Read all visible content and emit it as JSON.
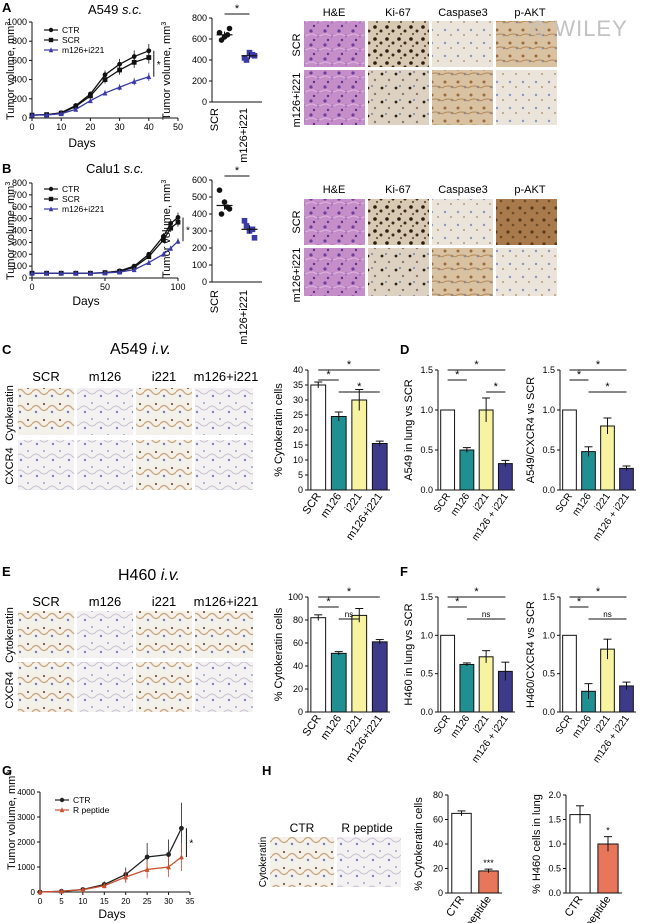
{
  "watermark": "© WILEY",
  "panels": {
    "A": {
      "letter": "A",
      "title_main": "A549",
      "title_em": "s.c.",
      "y_label": "Tumor volume, mm",
      "x_label": "Days",
      "dot_y_label": "Tumor volume, mm",
      "dot_categories": [
        "SCR",
        "m126+i221"
      ],
      "star": "*",
      "ihc_cols": [
        "H&E",
        "Ki-67",
        "Caspase3",
        "p-AKT"
      ],
      "ihc_rows": [
        "SCR",
        "m126+i221"
      ]
    },
    "B": {
      "letter": "B",
      "title_main": "Calu1",
      "title_em": "s.c.",
      "y_label": "Tumor volume, mm",
      "x_label": "Days",
      "dot_y_label": "Tumor volume, mm",
      "dot_categories": [
        "SCR",
        "m126+i221"
      ],
      "star": "*",
      "ihc_cols": [
        "H&E",
        "Ki-67",
        "Caspase3",
        "p-AKT"
      ],
      "ihc_rows": [
        "SCR",
        "m126+i221"
      ]
    },
    "C": {
      "letter": "C",
      "title_main": "A549",
      "title_em": "i.v.",
      "ihc_cols": [
        "SCR",
        "m126",
        "i221",
        "m126+i221"
      ],
      "ihc_rows": [
        "Cytokeratin",
        "CXCR4"
      ]
    },
    "D": {
      "letter": "D"
    },
    "E": {
      "letter": "E",
      "title_main": "H460",
      "title_em": "i.v.",
      "ihc_cols": [
        "SCR",
        "m126",
        "i221",
        "m126+i221"
      ],
      "ihc_rows": [
        "Cytokeratin",
        "CXCR4"
      ]
    },
    "F": {
      "letter": "F"
    },
    "G": {
      "letter": "G",
      "y_label": "Tumor volume, mm",
      "x_label": "Days"
    },
    "H": {
      "letter": "H",
      "ihc_cols": [
        "CTR",
        "R peptide"
      ],
      "ihc_row": "Cytokeratin"
    }
  },
  "chart_data": [
    {
      "id": "A-growth",
      "type": "line",
      "x": [
        0,
        5,
        10,
        15,
        20,
        25,
        30,
        35,
        40
      ],
      "xlim": [
        0,
        50
      ],
      "xticks": [
        0,
        10,
        20,
        30,
        40,
        50
      ],
      "ylim": [
        0,
        1000
      ],
      "yticks": [
        0,
        200,
        400,
        600,
        800,
        1000
      ],
      "series": [
        {
          "name": "CTR",
          "color": "#111111",
          "marker": "circle",
          "values": [
            30,
            35,
            55,
            130,
            250,
            450,
            560,
            640,
            700
          ]
        },
        {
          "name": "SCR",
          "color": "#111111",
          "marker": "square",
          "values": [
            30,
            35,
            50,
            120,
            230,
            400,
            500,
            580,
            630
          ]
        },
        {
          "name": "m126+i221",
          "color": "#3a3aa8",
          "marker": "triangle",
          "values": [
            30,
            32,
            45,
            90,
            180,
            260,
            320,
            380,
            430
          ]
        }
      ],
      "star": "*"
    },
    {
      "id": "A-dot",
      "type": "scatter",
      "categories": [
        "SCR",
        "m126+i221"
      ],
      "ylim": [
        0,
        800
      ],
      "yticks": [
        0,
        200,
        400,
        600,
        800
      ],
      "groups": [
        {
          "marker": "circle",
          "color": "#111111",
          "values": [
            660,
            620,
            700,
            590,
            640
          ],
          "mean": 640
        },
        {
          "marker": "square",
          "color": "#3a3aa8",
          "values": [
            420,
            470,
            440,
            400,
            450
          ],
          "mean": 440
        }
      ],
      "star": "*"
    },
    {
      "id": "B-growth",
      "type": "line",
      "x": [
        0,
        10,
        20,
        30,
        40,
        50,
        60,
        70,
        80,
        90,
        95,
        100
      ],
      "xlim": [
        0,
        100
      ],
      "xticks": [
        0,
        50,
        100
      ],
      "ylim": [
        0,
        800
      ],
      "yticks": [
        0,
        100,
        200,
        300,
        400,
        500,
        600,
        700,
        800
      ],
      "series": [
        {
          "name": "CTR",
          "color": "#111111",
          "marker": "circle",
          "values": [
            40,
            40,
            40,
            40,
            40,
            45,
            60,
            100,
            200,
            350,
            460,
            510
          ]
        },
        {
          "name": "SCR",
          "color": "#111111",
          "marker": "square",
          "values": [
            40,
            40,
            40,
            40,
            40,
            45,
            55,
            90,
            180,
            320,
            420,
            470
          ]
        },
        {
          "name": "m126+i221",
          "color": "#3a3aa8",
          "marker": "triangle",
          "values": [
            40,
            40,
            40,
            40,
            40,
            42,
            50,
            70,
            130,
            200,
            250,
            310
          ]
        }
      ],
      "star": "*"
    },
    {
      "id": "B-dot",
      "type": "scatter",
      "categories": [
        "SCR",
        "m126+i221"
      ],
      "ylim": [
        0,
        600
      ],
      "yticks": [
        0,
        100,
        200,
        300,
        400,
        500,
        600
      ],
      "groups": [
        {
          "marker": "circle",
          "color": "#111111",
          "values": [
            540,
            470,
            430,
            400,
            440
          ],
          "mean": 450
        },
        {
          "marker": "square",
          "color": "#3a3aa8",
          "values": [
            360,
            300,
            260,
            330,
            310
          ],
          "mean": 310
        }
      ],
      "star": "*"
    },
    {
      "id": "C-bar",
      "type": "bar",
      "ylabel": "% Cytokeratin cells",
      "categories": [
        "SCR",
        "m126",
        "i221",
        "m126+i221"
      ],
      "values": [
        35,
        24.5,
        30,
        15.5
      ],
      "errors": [
        1,
        1.5,
        3.5,
        0.8
      ],
      "colors": [
        "#ffffff",
        "#1f8f92",
        "#f7f3a0",
        "#3d3a8a"
      ],
      "ylim": [
        0,
        40
      ],
      "yticks": [
        0,
        5,
        10,
        15,
        20,
        25,
        30,
        35,
        40
      ],
      "brackets": [
        {
          "a": 0,
          "b": 1,
          "label": "*"
        },
        {
          "a": 0,
          "b": 3,
          "label": "*"
        },
        {
          "a": 1,
          "b": 3,
          "label": "*"
        }
      ]
    },
    {
      "id": "D-bar1",
      "type": "bar",
      "ylabel": "A549 in lung vs SCR",
      "categories": [
        "SCR",
        "m126",
        "i221",
        "m126 + i221"
      ],
      "values": [
        1.0,
        0.5,
        1.0,
        0.33
      ],
      "errors": [
        0,
        0.03,
        0.15,
        0.04
      ],
      "colors": [
        "#ffffff",
        "#1f8f92",
        "#f7f3a0",
        "#3d3a8a"
      ],
      "ylim": [
        0,
        1.5
      ],
      "yticks": [
        0.0,
        0.5,
        1.0,
        1.5
      ],
      "brackets": [
        {
          "a": 0,
          "b": 1,
          "label": "*"
        },
        {
          "a": 0,
          "b": 3,
          "label": "*"
        },
        {
          "a": 2,
          "b": 3,
          "label": "*"
        }
      ]
    },
    {
      "id": "D-bar2",
      "type": "bar",
      "ylabel": "A549/CXCR4 vs SCR",
      "categories": [
        "SCR",
        "m126",
        "i221",
        "m126 + i221"
      ],
      "values": [
        1.0,
        0.48,
        0.8,
        0.27
      ],
      "errors": [
        0,
        0.06,
        0.1,
        0.03
      ],
      "colors": [
        "#ffffff",
        "#1f8f92",
        "#f7f3a0",
        "#3d3a8a"
      ],
      "ylim": [
        0,
        1.5
      ],
      "yticks": [
        0.0,
        0.5,
        1.0,
        1.5
      ],
      "brackets": [
        {
          "a": 0,
          "b": 1,
          "label": "*"
        },
        {
          "a": 0,
          "b": 3,
          "label": "*"
        },
        {
          "a": 1,
          "b": 3,
          "label": "*"
        }
      ]
    },
    {
      "id": "E-bar",
      "type": "bar",
      "ylabel": "% Cytokeratin cells",
      "categories": [
        "SCR",
        "m126",
        "i221",
        "m126+i221"
      ],
      "values": [
        82,
        51,
        84,
        61
      ],
      "errors": [
        2.5,
        1.5,
        6,
        2
      ],
      "colors": [
        "#ffffff",
        "#1f8f92",
        "#f7f3a0",
        "#3d3a8a"
      ],
      "ylim": [
        0,
        100
      ],
      "yticks": [
        0,
        20,
        40,
        60,
        80,
        100
      ],
      "brackets": [
        {
          "a": 0,
          "b": 1,
          "label": "*"
        },
        {
          "a": 0,
          "b": 3,
          "label": "*"
        },
        {
          "a": 1,
          "b": 2,
          "label": "ns"
        }
      ]
    },
    {
      "id": "F-bar1",
      "type": "bar",
      "ylabel": "H460 in lung vs SCR",
      "categories": [
        "SCR",
        "m126",
        "i221",
        "m126 + i221"
      ],
      "values": [
        1.0,
        0.62,
        0.72,
        0.53
      ],
      "errors": [
        0,
        0.02,
        0.08,
        0.12
      ],
      "colors": [
        "#ffffff",
        "#1f8f92",
        "#f7f3a0",
        "#3d3a8a"
      ],
      "ylim": [
        0,
        1.5
      ],
      "yticks": [
        0.0,
        0.5,
        1.0,
        1.5
      ],
      "brackets": [
        {
          "a": 0,
          "b": 1,
          "label": "*"
        },
        {
          "a": 0,
          "b": 3,
          "label": "*"
        },
        {
          "a": 1,
          "b": 3,
          "label": "ns"
        }
      ]
    },
    {
      "id": "F-bar2",
      "type": "bar",
      "ylabel": "H460/CXCR4 vs SCR",
      "categories": [
        "SCR",
        "m126",
        "i221",
        "m126 + i221"
      ],
      "values": [
        1.0,
        0.27,
        0.82,
        0.34
      ],
      "errors": [
        0,
        0.1,
        0.13,
        0.05
      ],
      "colors": [
        "#ffffff",
        "#1f8f92",
        "#f7f3a0",
        "#3d3a8a"
      ],
      "ylim": [
        0,
        1.5
      ],
      "yticks": [
        0.0,
        0.5,
        1.0,
        1.5
      ],
      "brackets": [
        {
          "a": 0,
          "b": 1,
          "label": "*"
        },
        {
          "a": 0,
          "b": 3,
          "label": "*"
        },
        {
          "a": 1,
          "b": 3,
          "label": "ns"
        }
      ]
    },
    {
      "id": "G-growth",
      "type": "line",
      "x": [
        0,
        5,
        10,
        15,
        20,
        25,
        30,
        33
      ],
      "xlim": [
        0,
        35
      ],
      "xticks": [
        0,
        5,
        10,
        15,
        20,
        25,
        30,
        35
      ],
      "ylim": [
        0,
        4000
      ],
      "yticks": [
        0,
        1000,
        2000,
        3000,
        4000
      ],
      "series": [
        {
          "name": "CTR",
          "color": "#222222",
          "marker": "circle",
          "values": [
            0,
            30,
            100,
            300,
            700,
            1400,
            1500,
            2550
          ]
        },
        {
          "name": "R peptide",
          "color": "#c8502e",
          "marker": "triangle",
          "values": [
            0,
            30,
            90,
            250,
            600,
            900,
            1000,
            1400
          ]
        }
      ],
      "star": "*"
    },
    {
      "id": "H-bar1",
      "type": "bar",
      "ylabel": "% Cytokeratin cells",
      "categories": [
        "CTR",
        "R peptide"
      ],
      "values": [
        65,
        18
      ],
      "errors": [
        2,
        1.5
      ],
      "colors": [
        "#ffffff",
        "#e8765a"
      ],
      "ylim": [
        0,
        80
      ],
      "yticks": [
        0,
        20,
        40,
        60,
        80
      ],
      "stars": [
        "",
        "***"
      ]
    },
    {
      "id": "H-bar2",
      "type": "bar",
      "ylabel": "% H460 cells in lung",
      "categories": [
        "CTR",
        "R peptide"
      ],
      "values": [
        1.6,
        1.0
      ],
      "errors": [
        0.18,
        0.15
      ],
      "colors": [
        "#ffffff",
        "#e8765a"
      ],
      "ylim": [
        0,
        2.0
      ],
      "yticks": [
        0.0,
        0.5,
        1.0,
        1.5,
        2.0
      ],
      "stars": [
        "",
        "*"
      ]
    }
  ]
}
